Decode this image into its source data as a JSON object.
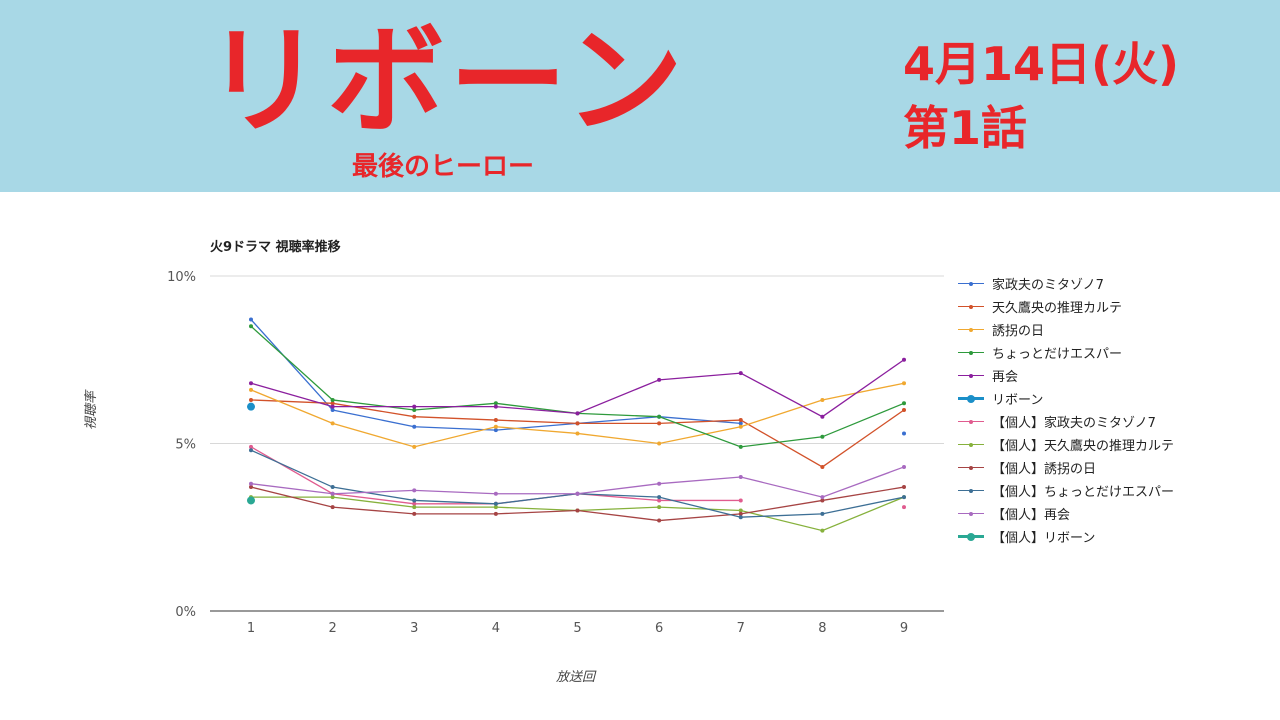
{
  "header": {
    "title": "リボーン",
    "subtitle": "最後のヒーロー",
    "air_date": "4月14日(火)",
    "episode": "第1話"
  },
  "chart_data": {
    "type": "line",
    "title": "火9ドラマ 視聴率推移",
    "xlabel": "放送回",
    "ylabel": "視聴率",
    "x": [
      1,
      2,
      3,
      4,
      5,
      6,
      7,
      8,
      9
    ],
    "ylim": [
      0,
      10
    ],
    "yticks": [
      0,
      5,
      10
    ],
    "ytick_labels": [
      "0%",
      "5%",
      "10%"
    ],
    "grid": true,
    "legend_position": "right",
    "series": [
      {
        "name": "家政夫のミタゾノ7",
        "color": "#3a6fd0",
        "values": [
          8.7,
          6.0,
          5.5,
          5.4,
          5.6,
          5.8,
          5.6,
          null,
          5.3
        ]
      },
      {
        "name": "天久鷹央の推理カルテ",
        "color": "#d2522a",
        "values": [
          6.3,
          6.2,
          5.8,
          5.7,
          5.6,
          5.6,
          5.7,
          4.3,
          6.0
        ]
      },
      {
        "name": "誘拐の日",
        "color": "#f0a830",
        "values": [
          6.6,
          5.6,
          4.9,
          5.5,
          5.3,
          5.0,
          5.5,
          6.3,
          6.8
        ]
      },
      {
        "name": "ちょっとだけエスパー",
        "color": "#2e9a3c",
        "values": [
          8.5,
          6.3,
          6.0,
          6.2,
          5.9,
          5.8,
          4.9,
          5.2,
          6.2
        ]
      },
      {
        "name": "再会",
        "color": "#8b1f9e",
        "values": [
          6.8,
          6.1,
          6.1,
          6.1,
          5.9,
          6.9,
          7.1,
          5.8,
          7.5
        ]
      },
      {
        "name": "リボーン",
        "color": "#1b8fc8",
        "bold": true,
        "values": [
          6.1,
          null,
          null,
          null,
          null,
          null,
          null,
          null,
          null
        ]
      },
      {
        "name": "【個人】家政夫のミタゾノ7",
        "color": "#e05c8f",
        "values": [
          4.9,
          3.5,
          3.2,
          3.2,
          3.5,
          3.3,
          3.3,
          null,
          3.1
        ]
      },
      {
        "name": "【個人】天久鷹央の推理カルテ",
        "color": "#86b13c",
        "values": [
          3.4,
          3.4,
          3.1,
          3.1,
          3.0,
          3.1,
          3.0,
          2.4,
          3.4
        ]
      },
      {
        "name": "【個人】誘拐の日",
        "color": "#a64444",
        "values": [
          3.7,
          3.1,
          2.9,
          2.9,
          3.0,
          2.7,
          2.9,
          3.3,
          3.7
        ]
      },
      {
        "name": "【個人】ちょっとだけエスパー",
        "color": "#3d6f95",
        "values": [
          4.8,
          3.7,
          3.3,
          3.2,
          3.5,
          3.4,
          2.8,
          2.9,
          3.4
        ]
      },
      {
        "name": "【個人】再会",
        "color": "#a86ac0",
        "values": [
          3.8,
          3.5,
          3.6,
          3.5,
          3.5,
          3.8,
          4.0,
          3.4,
          4.3
        ]
      },
      {
        "name": "【個人】リボーン",
        "color": "#2aa894",
        "bold": true,
        "values": [
          3.3,
          null,
          null,
          null,
          null,
          null,
          null,
          null,
          null
        ]
      }
    ]
  }
}
